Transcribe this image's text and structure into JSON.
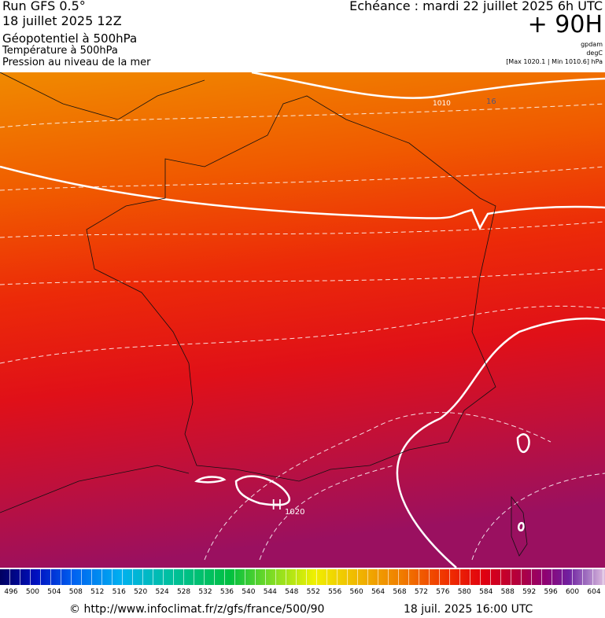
{
  "header": {
    "run": "Run GFS 0.5°",
    "date": "18 juillet 2025 12Z",
    "field1": "Géopotentiel à 500hPa",
    "field2": "Température à 500hPa",
    "field3": "Pression au niveau de la mer",
    "echeance": "Echéance : mardi 22 juillet 2025 6h UTC",
    "lead": "+ 90H",
    "unit1": "gpdam",
    "unit2": "degC",
    "range": "[Max 1020.1 | Min 1010.6] hPa"
  },
  "map": {
    "isobar_label": "1010",
    "temp_label": "16",
    "high": "H",
    "high_value": "1020"
  },
  "legend": {
    "labels": [
      496,
      500,
      504,
      508,
      512,
      516,
      520,
      524,
      528,
      532,
      536,
      540,
      544,
      548,
      552,
      556,
      560,
      564,
      568,
      572,
      576,
      580,
      584,
      588,
      592,
      596,
      600,
      604
    ]
  },
  "footer": {
    "source": "© http://www.infoclimat.fr/z/gfs/france/500/90",
    "time": "18 juil. 2025 16:00 UTC"
  }
}
